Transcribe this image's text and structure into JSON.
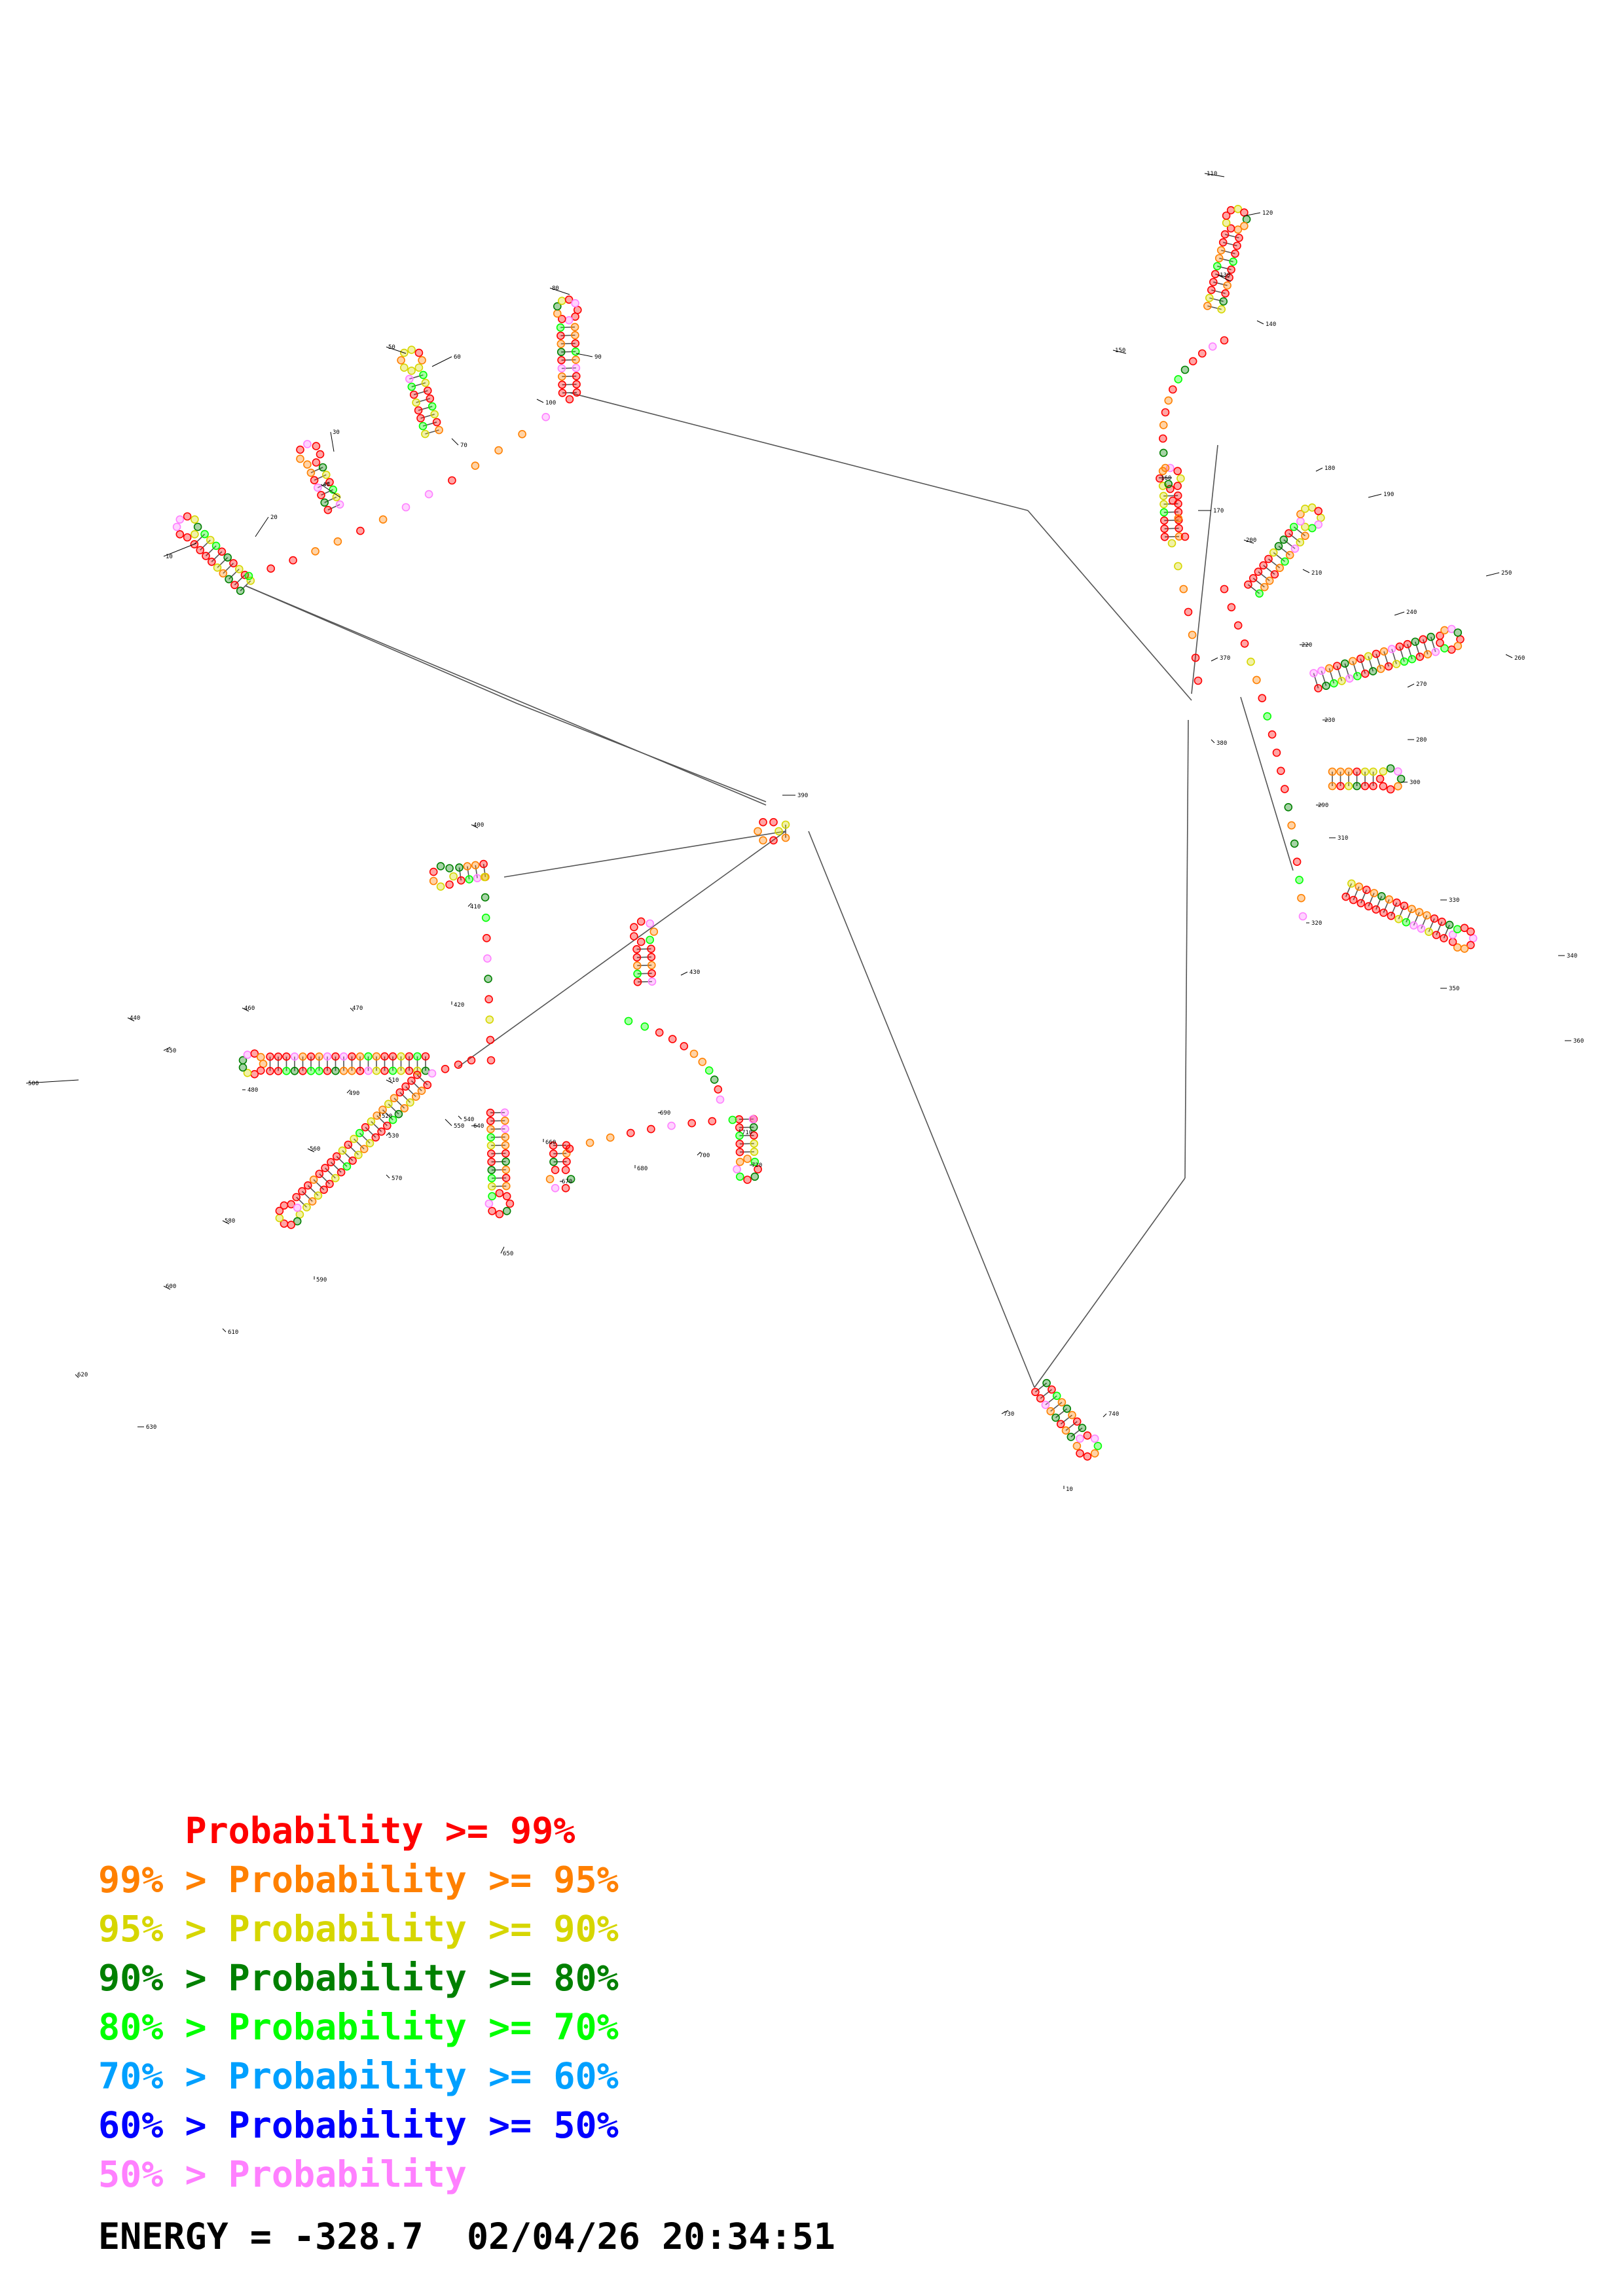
{
  "diagram": {
    "colors": {
      "p99": "#ff0000",
      "p95": "#ff8000",
      "p90": "#d6d600",
      "p80": "#008000",
      "p70": "#00ff00",
      "p60": "#00a0ff",
      "p50": "#0000ff",
      "plow": "#ff80ff"
    },
    "position_labels": [
      "10",
      "20",
      "30",
      "40",
      "50",
      "60",
      "70",
      "80",
      "90",
      "100",
      "110",
      "120",
      "130",
      "140",
      "150",
      "160",
      "170",
      "180",
      "190",
      "200",
      "210",
      "220",
      "230",
      "240",
      "250",
      "260",
      "270",
      "280",
      "290",
      "300",
      "310",
      "320",
      "330",
      "340",
      "350",
      "360",
      "370",
      "380",
      "390",
      "400",
      "410",
      "420",
      "430",
      "440",
      "450",
      "460",
      "470",
      "480",
      "490",
      "500",
      "510",
      "520",
      "530",
      "540",
      "550",
      "560",
      "570",
      "580",
      "590",
      "600",
      "610",
      "620",
      "630",
      "640",
      "650",
      "660",
      "670",
      "680",
      "690",
      "700",
      "710",
      "720",
      "730",
      "740"
    ]
  },
  "legend": [
    {
      "prefix": "   ",
      "text": "    Probability >= 99%",
      "color": "#ff0000"
    },
    {
      "prefix": "",
      "text": "99% > Probability >= 95%",
      "color": "#ff8000"
    },
    {
      "prefix": "",
      "text": "95% > Probability >= 90%",
      "color": "#d6d600"
    },
    {
      "prefix": "",
      "text": "90% > Probability >= 80%",
      "color": "#008000"
    },
    {
      "prefix": "",
      "text": "80% > Probability >= 70%",
      "color": "#00ff00"
    },
    {
      "prefix": "",
      "text": "70% > Probability >= 60%",
      "color": "#00a0ff"
    },
    {
      "prefix": "",
      "text": "60% > Probability >= 50%",
      "color": "#0000ff"
    },
    {
      "prefix": "",
      "text": "50% > Probability",
      "color": "#ff80ff"
    }
  ],
  "footer": {
    "energy_label": "ENERGY = ",
    "energy_value": "-328.7",
    "timestamp": "02/04/26 20:34:51"
  }
}
